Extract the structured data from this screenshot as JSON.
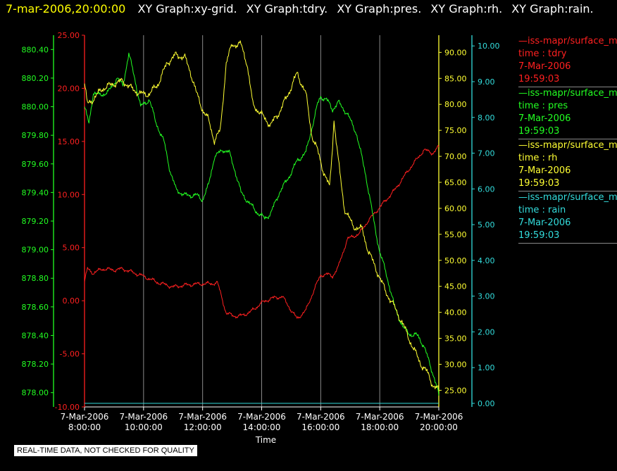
{
  "header": {
    "timestamp": "7-mar-2006,20:00:00",
    "graphs": [
      "XY Graph:xy-grid.",
      "XY Graph:tdry.",
      "XY Graph:pres.",
      "XY Graph:rh.",
      "XY Graph:rain."
    ]
  },
  "legend": [
    {
      "line": "—iss-mapr/surface_m",
      "var": "time : tdry",
      "date": "7-Mar-2006",
      "time": "19:59:03",
      "color": "#ff2020"
    },
    {
      "line": "—iss-mapr/surface_m",
      "var": "time : pres",
      "date": "7-Mar-2006",
      "time": "19:59:03",
      "color": "#22ff22"
    },
    {
      "line": "—iss-mapr/surface_m",
      "var": "time : rh",
      "date": "7-Mar-2006",
      "time": "19:59:03",
      "color": "#ffff33"
    },
    {
      "line": "—iss-mapr/surface_m",
      "var": "time : rain",
      "date": "7-Mar-2006",
      "time": "19:59:03",
      "color": "#33dddd"
    }
  ],
  "disclaimer": "REAL-TIME DATA, NOT CHECKED FOR QUALITY",
  "chart_data": {
    "type": "line",
    "xlabel": "Time",
    "x_ticks": [
      {
        "date": "7-Mar-2006",
        "time": "8:00:00",
        "hour": 8
      },
      {
        "date": "7-Mar-2006",
        "time": "10:00:00",
        "hour": 10
      },
      {
        "date": "7-Mar-2006",
        "time": "12:00:00",
        "hour": 12
      },
      {
        "date": "7-Mar-2006",
        "time": "14:00:00",
        "hour": 14
      },
      {
        "date": "7-Mar-2006",
        "time": "16:00:00",
        "hour": 16
      },
      {
        "date": "7-Mar-2006",
        "time": "18:00:00",
        "hour": 18
      },
      {
        "date": "7-Mar-2006",
        "time": "20:00:00",
        "hour": 20
      }
    ],
    "xlim_hours": [
      8,
      20
    ],
    "vertical_grid": true,
    "axes": {
      "tdry": {
        "color": "#ff2020",
        "ylim": [
          -10,
          25
        ],
        "ticks": [
          "-10.00",
          "-5.00",
          "0.00",
          "5.00",
          "10.00",
          "15.00",
          "20.00",
          "25.00"
        ]
      },
      "pres": {
        "color": "#22ff22",
        "ylim": [
          877.9,
          880.5
        ],
        "ticks": [
          "878.00",
          "878.20",
          "878.40",
          "878.60",
          "878.80",
          "879.00",
          "879.20",
          "879.40",
          "879.60",
          "879.80",
          "880.00",
          "880.20",
          "880.40"
        ]
      },
      "rh": {
        "color": "#ffff33",
        "ylim": [
          21.8,
          93.3
        ],
        "ticks": [
          "25.00",
          "30.00",
          "35.00",
          "40.00",
          "45.00",
          "50.00",
          "55.00",
          "60.00",
          "65.00",
          "70.00",
          "75.00",
          "80.00",
          "85.00",
          "90.00"
        ]
      },
      "rain": {
        "color": "#33dddd",
        "ylim": [
          -0.1,
          10.3
        ],
        "ticks": [
          "0.00",
          "1.00",
          "2.00",
          "3.00",
          "4.00",
          "5.00",
          "6.00",
          "7.00",
          "8.00",
          "9.00",
          "10.00"
        ]
      }
    },
    "series": [
      {
        "name": "tdry",
        "axis": "tdry",
        "color": "#ff2020",
        "points": [
          [
            8.0,
            1.8
          ],
          [
            8.1,
            3.0
          ],
          [
            8.3,
            2.6
          ],
          [
            8.6,
            3.0
          ],
          [
            9.0,
            2.9
          ],
          [
            9.3,
            3.0
          ],
          [
            9.7,
            2.6
          ],
          [
            10.0,
            2.3
          ],
          [
            10.5,
            1.7
          ],
          [
            11.0,
            1.3
          ],
          [
            11.5,
            1.5
          ],
          [
            12.0,
            1.6
          ],
          [
            12.3,
            1.6
          ],
          [
            12.5,
            1.7
          ],
          [
            12.6,
            0.8
          ],
          [
            12.8,
            -1.2
          ],
          [
            13.2,
            -1.5
          ],
          [
            13.6,
            -1.1
          ],
          [
            14.0,
            -0.2
          ],
          [
            14.3,
            0.2
          ],
          [
            14.7,
            0.4
          ],
          [
            15.0,
            -0.9
          ],
          [
            15.2,
            -1.7
          ],
          [
            15.5,
            -0.9
          ],
          [
            15.8,
            1.2
          ],
          [
            16.0,
            2.4
          ],
          [
            16.2,
            2.5
          ],
          [
            16.4,
            2.3
          ],
          [
            16.6,
            3.2
          ],
          [
            16.9,
            5.8
          ],
          [
            17.3,
            6.3
          ],
          [
            17.6,
            7.5
          ],
          [
            18.0,
            8.8
          ],
          [
            18.5,
            10.4
          ],
          [
            19.0,
            12.4
          ],
          [
            19.5,
            14.2
          ],
          [
            19.8,
            13.9
          ],
          [
            20.0,
            14.5
          ]
        ]
      },
      {
        "name": "pres",
        "axis": "pres",
        "color": "#22ff22",
        "points": [
          [
            8.0,
            880.0
          ],
          [
            8.15,
            879.88
          ],
          [
            8.3,
            880.1
          ],
          [
            8.5,
            880.08
          ],
          [
            8.8,
            880.1
          ],
          [
            9.1,
            880.2
          ],
          [
            9.3,
            880.15
          ],
          [
            9.5,
            880.37
          ],
          [
            9.7,
            880.2
          ],
          [
            9.9,
            880.0
          ],
          [
            10.2,
            880.05
          ],
          [
            10.4,
            879.9
          ],
          [
            10.7,
            879.75
          ],
          [
            10.9,
            879.55
          ],
          [
            11.1,
            879.42
          ],
          [
            11.4,
            879.38
          ],
          [
            11.8,
            879.38
          ],
          [
            12.0,
            879.35
          ],
          [
            12.2,
            879.45
          ],
          [
            12.4,
            879.65
          ],
          [
            12.7,
            879.7
          ],
          [
            12.9,
            879.68
          ],
          [
            13.1,
            879.55
          ],
          [
            13.3,
            879.4
          ],
          [
            13.6,
            879.32
          ],
          [
            13.9,
            879.25
          ],
          [
            14.1,
            879.22
          ],
          [
            14.3,
            879.25
          ],
          [
            14.6,
            879.4
          ],
          [
            14.9,
            879.5
          ],
          [
            15.2,
            879.62
          ],
          [
            15.5,
            879.68
          ],
          [
            15.7,
            879.85
          ],
          [
            15.9,
            880.02
          ],
          [
            16.0,
            880.07
          ],
          [
            16.2,
            880.05
          ],
          [
            16.4,
            879.98
          ],
          [
            16.6,
            880.03
          ],
          [
            16.9,
            879.95
          ],
          [
            17.2,
            879.82
          ],
          [
            17.5,
            879.55
          ],
          [
            17.8,
            879.2
          ],
          [
            18.0,
            878.98
          ],
          [
            18.2,
            878.85
          ],
          [
            18.5,
            878.6
          ],
          [
            18.8,
            878.45
          ],
          [
            19.1,
            878.4
          ],
          [
            19.3,
            878.4
          ],
          [
            19.5,
            878.32
          ],
          [
            19.7,
            878.2
          ],
          [
            19.85,
            878.1
          ],
          [
            20.0,
            877.98
          ]
        ]
      },
      {
        "name": "rh",
        "axis": "rh",
        "color": "#ffff33",
        "points": [
          [
            8.0,
            84.0
          ],
          [
            8.1,
            80.0
          ],
          [
            8.3,
            81.0
          ],
          [
            8.6,
            83.0
          ],
          [
            9.0,
            84.0
          ],
          [
            9.3,
            84.5
          ],
          [
            9.6,
            83.0
          ],
          [
            9.9,
            82.0
          ],
          [
            10.2,
            82.0
          ],
          [
            10.5,
            84.0
          ],
          [
            10.8,
            88.0
          ],
          [
            11.1,
            89.5
          ],
          [
            11.4,
            89.0
          ],
          [
            11.6,
            86.0
          ],
          [
            11.8,
            82.0
          ],
          [
            12.0,
            79.0
          ],
          [
            12.2,
            77.0
          ],
          [
            12.4,
            73.0
          ],
          [
            12.6,
            75.0
          ],
          [
            12.8,
            88.0
          ],
          [
            13.0,
            91.5
          ],
          [
            13.3,
            91.5
          ],
          [
            13.5,
            88.0
          ],
          [
            13.7,
            80.0
          ],
          [
            14.0,
            78.0
          ],
          [
            14.3,
            76.0
          ],
          [
            14.6,
            78.5
          ],
          [
            14.9,
            82.0
          ],
          [
            15.2,
            86.0
          ],
          [
            15.5,
            82.0
          ],
          [
            15.7,
            74.0
          ],
          [
            15.9,
            71.0
          ],
          [
            16.1,
            67.0
          ],
          [
            16.3,
            64.0
          ],
          [
            16.4,
            72.0
          ],
          [
            16.45,
            77.0
          ],
          [
            16.6,
            69.0
          ],
          [
            16.8,
            60.0
          ],
          [
            17.1,
            56.5
          ],
          [
            17.4,
            56.0
          ],
          [
            17.6,
            52.0
          ],
          [
            17.9,
            48.0
          ],
          [
            18.2,
            44.0
          ],
          [
            18.5,
            41.0
          ],
          [
            18.8,
            37.5
          ],
          [
            19.1,
            33.5
          ],
          [
            19.4,
            30.0
          ],
          [
            19.6,
            28.5
          ],
          [
            19.8,
            26.0
          ],
          [
            20.0,
            25.0
          ]
        ]
      },
      {
        "name": "rain",
        "axis": "rain",
        "color": "#33dddd",
        "points": [
          [
            8.0,
            0.0
          ],
          [
            20.0,
            0.0
          ]
        ]
      }
    ]
  }
}
